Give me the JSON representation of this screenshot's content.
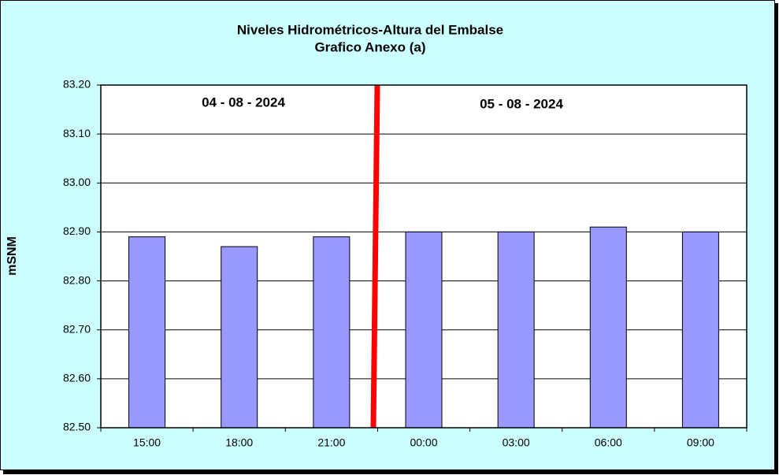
{
  "chart_data": {
    "type": "bar",
    "title": "Niveles Hidrométricos-Altura del Embalse",
    "subtitle": "Grafico Anexo (a)",
    "y_label": "mSNM",
    "annotations": [
      "04 - 08 - 2024",
      "05 - 08 - 2024"
    ],
    "categories": [
      "15:00",
      "18:00",
      "21:00",
      "00:00",
      "03:00",
      "06:00",
      "09:00"
    ],
    "values": [
      82.89,
      82.87,
      82.89,
      82.9,
      82.9,
      82.91,
      82.9
    ],
    "color": "#9999ff",
    "ylim": [
      82.5,
      83.2
    ],
    "yticks": [
      {
        "value": 82.5,
        "label": "82.50"
      },
      {
        "value": 82.6,
        "label": "82.60"
      },
      {
        "value": 82.7,
        "label": "82.70"
      },
      {
        "value": 82.8,
        "label": "82.80"
      },
      {
        "value": 82.9,
        "label": "82.90"
      },
      {
        "value": 83.0,
        "label": "83.00"
      },
      {
        "value": 83.1,
        "label": "83.10"
      },
      {
        "value": 83.2,
        "label": "83.20"
      }
    ],
    "grid": true
  }
}
